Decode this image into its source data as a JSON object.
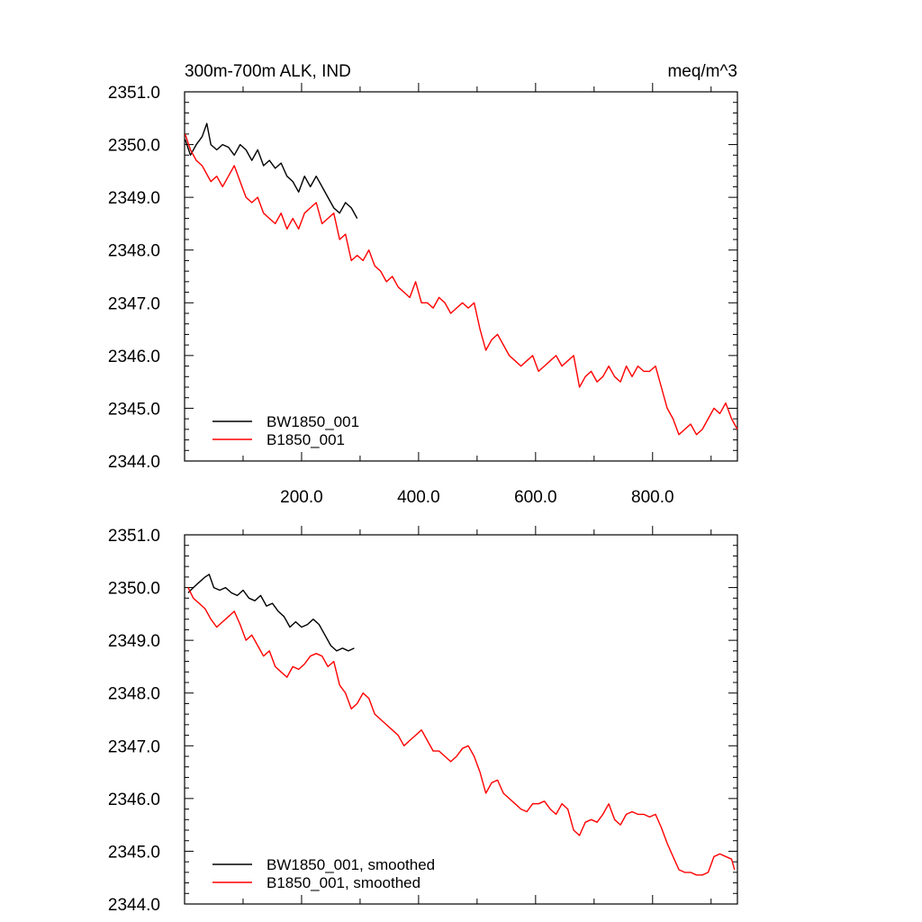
{
  "chart_data": [
    {
      "type": "line",
      "title_left": "300m-700m ALK, IND",
      "title_right": "meq/m^3",
      "xlim": [
        0,
        945
      ],
      "ylim": [
        2344.0,
        2351.0
      ],
      "yticks": [
        "2344.0",
        "2345.0",
        "2346.0",
        "2347.0",
        "2348.0",
        "2349.0",
        "2350.0",
        "2351.0"
      ],
      "xticks": [
        "200.0",
        "400.0",
        "600.0",
        "800.0"
      ],
      "legend_position": "bottom-left",
      "grid": false,
      "series": [
        {
          "name": "BW1850_001",
          "color": "#000000",
          "x": [
            1,
            10,
            20,
            30,
            38,
            45,
            55,
            65,
            75,
            85,
            95,
            105,
            115,
            125,
            135,
            145,
            155,
            165,
            175,
            185,
            195,
            205,
            215,
            225,
            235,
            245,
            255,
            265,
            275,
            285,
            295
          ],
          "y": [
            2350.1,
            2349.8,
            2350.0,
            2350.15,
            2350.4,
            2350.0,
            2349.9,
            2350.0,
            2349.95,
            2349.8,
            2350.0,
            2349.9,
            2349.7,
            2349.9,
            2349.6,
            2349.7,
            2349.55,
            2349.65,
            2349.4,
            2349.3,
            2349.1,
            2349.4,
            2349.2,
            2349.4,
            2349.2,
            2349.0,
            2348.8,
            2348.7,
            2348.9,
            2348.8,
            2348.6
          ]
        },
        {
          "name": "B1850_001",
          "color": "#ff0000",
          "x": [
            1,
            10,
            20,
            30,
            45,
            55,
            65,
            75,
            85,
            95,
            105,
            115,
            125,
            135,
            145,
            155,
            165,
            175,
            185,
            195,
            205,
            215,
            225,
            235,
            245,
            255,
            265,
            275,
            285,
            295,
            305,
            315,
            325,
            335,
            345,
            355,
            365,
            375,
            385,
            395,
            405,
            415,
            425,
            435,
            445,
            455,
            465,
            475,
            485,
            495,
            505,
            515,
            525,
            535,
            545,
            555,
            565,
            575,
            585,
            595,
            605,
            615,
            625,
            635,
            645,
            655,
            665,
            675,
            685,
            695,
            705,
            715,
            725,
            735,
            745,
            755,
            765,
            775,
            785,
            795,
            805,
            815,
            825,
            835,
            845,
            855,
            865,
            875,
            885,
            895,
            905,
            915,
            925,
            935,
            945
          ],
          "y": [
            2350.2,
            2349.9,
            2349.7,
            2349.6,
            2349.3,
            2349.4,
            2349.2,
            2349.4,
            2349.6,
            2349.3,
            2349.0,
            2348.9,
            2349.0,
            2348.7,
            2348.6,
            2348.5,
            2348.7,
            2348.4,
            2348.6,
            2348.4,
            2348.7,
            2348.8,
            2348.9,
            2348.5,
            2348.6,
            2348.7,
            2348.2,
            2348.3,
            2347.8,
            2347.9,
            2347.8,
            2348.0,
            2347.7,
            2347.6,
            2347.4,
            2347.5,
            2347.3,
            2347.2,
            2347.1,
            2347.4,
            2347.0,
            2347.0,
            2346.9,
            2347.1,
            2347.0,
            2346.8,
            2346.9,
            2347.0,
            2346.9,
            2347.0,
            2346.5,
            2346.1,
            2346.3,
            2346.4,
            2346.2,
            2346.0,
            2345.9,
            2345.8,
            2345.9,
            2346.0,
            2345.7,
            2345.8,
            2345.9,
            2346.0,
            2345.8,
            2345.9,
            2346.0,
            2345.4,
            2345.6,
            2345.7,
            2345.5,
            2345.6,
            2345.8,
            2345.6,
            2345.5,
            2345.8,
            2345.6,
            2345.8,
            2345.7,
            2345.7,
            2345.8,
            2345.4,
            2345.0,
            2344.8,
            2344.5,
            2344.6,
            2344.7,
            2344.5,
            2344.6,
            2344.8,
            2345.0,
            2344.9,
            2345.1,
            2344.8,
            2344.6
          ]
        }
      ]
    },
    {
      "type": "line",
      "xlim": [
        0,
        945
      ],
      "ylim": [
        2344.0,
        2351.0
      ],
      "yticks": [
        "2344.0",
        "2345.0",
        "2346.0",
        "2347.0",
        "2348.0",
        "2349.0",
        "2350.0",
        "2351.0"
      ],
      "legend_position": "bottom-left",
      "grid": false,
      "series": [
        {
          "name": "BW1850_001, smoothed",
          "color": "#000000",
          "x": [
            6,
            15,
            25,
            35,
            42,
            50,
            60,
            70,
            80,
            90,
            100,
            110,
            120,
            130,
            140,
            150,
            160,
            170,
            180,
            190,
            200,
            210,
            220,
            230,
            240,
            250,
            260,
            270,
            280,
            290
          ],
          "y": [
            2349.9,
            2350.0,
            2350.1,
            2350.2,
            2350.25,
            2350.0,
            2349.95,
            2350.0,
            2349.9,
            2349.85,
            2349.95,
            2349.8,
            2349.75,
            2349.85,
            2349.65,
            2349.7,
            2349.55,
            2349.45,
            2349.25,
            2349.35,
            2349.25,
            2349.3,
            2349.4,
            2349.3,
            2349.1,
            2348.9,
            2348.8,
            2348.85,
            2348.8,
            2348.85
          ]
        },
        {
          "name": "B1850_001, smoothed",
          "color": "#ff0000",
          "x": [
            6,
            15,
            25,
            35,
            45,
            55,
            65,
            75,
            85,
            95,
            105,
            115,
            125,
            135,
            145,
            155,
            165,
            175,
            185,
            195,
            205,
            215,
            225,
            235,
            245,
            255,
            265,
            275,
            285,
            295,
            305,
            315,
            325,
            335,
            345,
            355,
            365,
            375,
            385,
            395,
            405,
            415,
            425,
            435,
            445,
            455,
            465,
            475,
            485,
            495,
            505,
            515,
            525,
            535,
            545,
            555,
            565,
            575,
            585,
            595,
            605,
            615,
            625,
            635,
            645,
            655,
            665,
            675,
            685,
            695,
            705,
            715,
            725,
            735,
            745,
            755,
            765,
            775,
            785,
            795,
            805,
            815,
            825,
            835,
            845,
            855,
            865,
            875,
            885,
            895,
            905,
            915,
            925,
            935,
            940
          ],
          "y": [
            2350.0,
            2349.8,
            2349.7,
            2349.6,
            2349.4,
            2349.25,
            2349.35,
            2349.45,
            2349.55,
            2349.3,
            2349.0,
            2349.1,
            2348.9,
            2348.7,
            2348.8,
            2348.5,
            2348.4,
            2348.3,
            2348.5,
            2348.45,
            2348.55,
            2348.7,
            2348.75,
            2348.7,
            2348.5,
            2348.6,
            2348.15,
            2348.0,
            2347.7,
            2347.8,
            2348.0,
            2347.9,
            2347.6,
            2347.5,
            2347.4,
            2347.3,
            2347.2,
            2347.0,
            2347.1,
            2347.2,
            2347.3,
            2347.1,
            2346.9,
            2346.9,
            2346.8,
            2346.7,
            2346.8,
            2346.95,
            2347.0,
            2346.8,
            2346.5,
            2346.1,
            2346.3,
            2346.35,
            2346.1,
            2346.0,
            2345.9,
            2345.8,
            2345.75,
            2345.9,
            2345.9,
            2345.95,
            2345.8,
            2345.7,
            2345.9,
            2345.8,
            2345.4,
            2345.3,
            2345.55,
            2345.6,
            2345.55,
            2345.7,
            2345.9,
            2345.6,
            2345.5,
            2345.7,
            2345.75,
            2345.7,
            2345.7,
            2345.65,
            2345.7,
            2345.45,
            2345.15,
            2344.9,
            2344.65,
            2344.6,
            2344.6,
            2344.55,
            2344.55,
            2344.6,
            2344.9,
            2344.95,
            2344.9,
            2344.85,
            2344.65
          ]
        }
      ]
    }
  ]
}
